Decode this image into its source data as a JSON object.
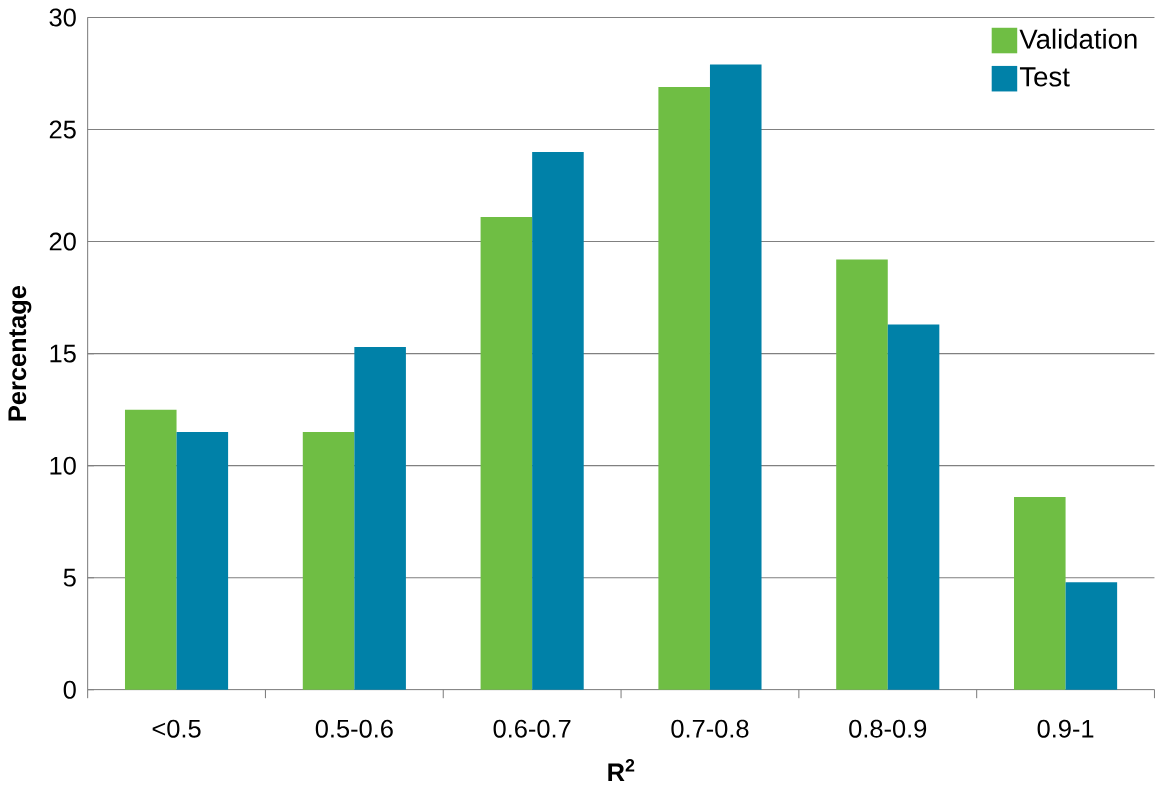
{
  "chart_data": {
    "type": "bar",
    "xlabel": "R$^{2}$",
    "ylabel": "Percentage",
    "categories": [
      "<0.5",
      "0.5-0.6",
      "0.6-0.7",
      "0.7-0.8",
      "0.8-0.9",
      "0.9-1"
    ],
    "series": [
      {
        "name": "Validation",
        "color": "#6fbe44",
        "values": [
          12.5,
          11.5,
          21.1,
          26.9,
          19.2,
          8.6
        ]
      },
      {
        "name": "Test",
        "color": "#0081a8",
        "values": [
          11.5,
          15.3,
          24.0,
          27.9,
          16.3,
          4.8
        ]
      }
    ],
    "ylim": [
      0,
      30
    ],
    "yticks": [
      0,
      5,
      10,
      15,
      20,
      25,
      30
    ],
    "grid": "y",
    "legend": "top right"
  }
}
